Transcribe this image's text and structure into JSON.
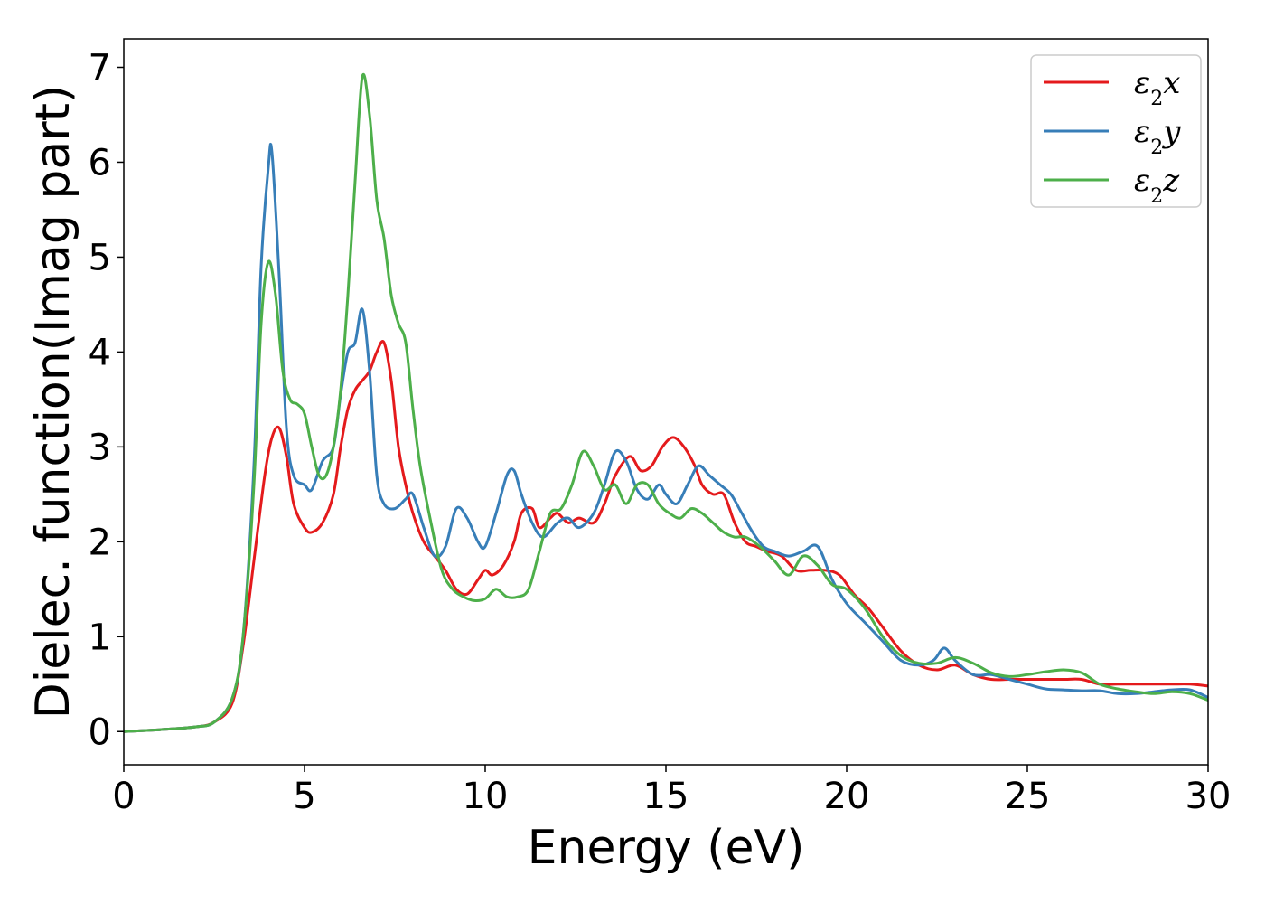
{
  "chart_data": {
    "type": "line",
    "title": "",
    "xlabel": "Energy (eV)",
    "ylabel": "Dielec. function(Imag part)",
    "xlim": [
      0,
      30
    ],
    "ylim": [
      -0.35,
      7.3
    ],
    "xticks": [
      "0",
      "5",
      "10",
      "15",
      "20",
      "25",
      "30"
    ],
    "yticks": [
      "0",
      "1",
      "2",
      "3",
      "4",
      "5",
      "6",
      "7"
    ],
    "grid": false,
    "legend_position": "top-right",
    "series": [
      {
        "name": "ε₂x",
        "legend": {
          "symbol": "ε",
          "sub": "2",
          "suffix": "x"
        },
        "color": "#e41a1c",
        "x": [
          0,
          1,
          2,
          2.5,
          3,
          3.3,
          3.6,
          3.9,
          4.1,
          4.3,
          4.5,
          4.7,
          5.0,
          5.2,
          5.5,
          5.8,
          6.0,
          6.2,
          6.4,
          6.6,
          6.8,
          7.0,
          7.2,
          7.4,
          7.6,
          7.8,
          8.0,
          8.3,
          8.6,
          8.9,
          9.2,
          9.5,
          9.8,
          10.0,
          10.2,
          10.5,
          10.8,
          11.0,
          11.3,
          11.5,
          11.8,
          12.0,
          12.3,
          12.6,
          13.0,
          13.3,
          13.6,
          14.0,
          14.3,
          14.6,
          14.9,
          15.2,
          15.5,
          15.8,
          16.0,
          16.3,
          16.6,
          16.9,
          17.2,
          17.5,
          17.8,
          18.2,
          18.6,
          19.0,
          19.4,
          19.8,
          20.2,
          20.6,
          21.0,
          21.5,
          22.0,
          22.5,
          23.0,
          23.5,
          24.0,
          24.5,
          25.0,
          25.5,
          26.0,
          26.5,
          27.0,
          27.5,
          28.0,
          28.5,
          29.0,
          29.5,
          30
        ],
        "y": [
          0,
          0.02,
          0.05,
          0.1,
          0.3,
          0.9,
          1.8,
          2.7,
          3.1,
          3.2,
          2.9,
          2.4,
          2.15,
          2.1,
          2.2,
          2.5,
          3.0,
          3.4,
          3.6,
          3.7,
          3.8,
          4.0,
          4.1,
          3.7,
          3.0,
          2.6,
          2.3,
          2.0,
          1.85,
          1.7,
          1.5,
          1.45,
          1.6,
          1.7,
          1.65,
          1.75,
          2.0,
          2.3,
          2.35,
          2.15,
          2.25,
          2.3,
          2.2,
          2.25,
          2.2,
          2.4,
          2.7,
          2.9,
          2.75,
          2.8,
          3.0,
          3.1,
          3.0,
          2.8,
          2.6,
          2.5,
          2.5,
          2.2,
          2.0,
          1.95,
          1.9,
          1.85,
          1.7,
          1.7,
          1.7,
          1.65,
          1.45,
          1.3,
          1.1,
          0.85,
          0.7,
          0.65,
          0.7,
          0.6,
          0.55,
          0.55,
          0.55,
          0.55,
          0.55,
          0.55,
          0.5,
          0.5,
          0.5,
          0.5,
          0.5,
          0.5,
          0.48
        ]
      },
      {
        "name": "ε₂y",
        "legend": {
          "symbol": "ε",
          "sub": "2",
          "suffix": "y"
        },
        "color": "#377eb8",
        "x": [
          0,
          1,
          2,
          2.5,
          3,
          3.3,
          3.6,
          3.8,
          4.0,
          4.1,
          4.3,
          4.5,
          4.7,
          5.0,
          5.2,
          5.5,
          5.8,
          6.0,
          6.2,
          6.4,
          6.6,
          6.8,
          7.0,
          7.2,
          7.5,
          7.8,
          8.0,
          8.3,
          8.6,
          8.9,
          9.2,
          9.5,
          9.8,
          10.0,
          10.3,
          10.6,
          10.8,
          11.0,
          11.3,
          11.6,
          12.0,
          12.3,
          12.6,
          13.0,
          13.3,
          13.6,
          13.9,
          14.2,
          14.5,
          14.8,
          15.0,
          15.3,
          15.6,
          15.9,
          16.2,
          16.5,
          16.8,
          17.1,
          17.4,
          17.7,
          18.0,
          18.4,
          18.8,
          19.2,
          19.6,
          20.0,
          20.5,
          21.0,
          21.5,
          22.0,
          22.4,
          22.7,
          23.0,
          23.5,
          24.0,
          24.5,
          25.0,
          25.5,
          26.0,
          26.5,
          27.0,
          27.5,
          28.0,
          28.5,
          29.0,
          29.5,
          30
        ],
        "y": [
          0,
          0.02,
          0.05,
          0.1,
          0.35,
          1.0,
          2.8,
          4.9,
          5.95,
          6.1,
          4.8,
          3.2,
          2.7,
          2.6,
          2.55,
          2.85,
          3.0,
          3.55,
          4.0,
          4.1,
          4.45,
          3.8,
          2.7,
          2.4,
          2.35,
          2.45,
          2.5,
          2.15,
          1.85,
          1.95,
          2.35,
          2.25,
          2.0,
          1.95,
          2.3,
          2.7,
          2.75,
          2.5,
          2.2,
          2.05,
          2.2,
          2.25,
          2.15,
          2.3,
          2.6,
          2.95,
          2.85,
          2.55,
          2.45,
          2.6,
          2.5,
          2.4,
          2.6,
          2.8,
          2.7,
          2.6,
          2.5,
          2.3,
          2.1,
          1.95,
          1.9,
          1.85,
          1.9,
          1.95,
          1.6,
          1.35,
          1.15,
          0.95,
          0.75,
          0.7,
          0.75,
          0.88,
          0.75,
          0.6,
          0.6,
          0.55,
          0.5,
          0.45,
          0.44,
          0.43,
          0.43,
          0.4,
          0.4,
          0.42,
          0.44,
          0.44,
          0.36
        ]
      },
      {
        "name": "ε₂z",
        "legend": {
          "symbol": "ε",
          "sub": "2",
          "suffix": "z"
        },
        "color": "#4daf4a",
        "x": [
          0,
          1,
          2,
          2.5,
          3,
          3.3,
          3.6,
          3.8,
          4.0,
          4.2,
          4.4,
          4.6,
          4.8,
          5.0,
          5.2,
          5.4,
          5.6,
          5.8,
          6.0,
          6.2,
          6.4,
          6.6,
          6.8,
          7.0,
          7.2,
          7.4,
          7.6,
          7.8,
          8.0,
          8.2,
          8.5,
          8.8,
          9.1,
          9.4,
          9.7,
          10.0,
          10.3,
          10.6,
          10.9,
          11.2,
          11.5,
          11.8,
          12.1,
          12.4,
          12.7,
          13.0,
          13.3,
          13.6,
          13.9,
          14.2,
          14.5,
          14.8,
          15.1,
          15.4,
          15.7,
          16.0,
          16.3,
          16.6,
          16.9,
          17.2,
          17.6,
          18.0,
          18.4,
          18.8,
          19.2,
          19.6,
          20.0,
          20.5,
          21.0,
          21.5,
          22.0,
          22.5,
          23.0,
          23.5,
          24.0,
          24.5,
          25.0,
          25.5,
          26.0,
          26.5,
          27.0,
          27.5,
          28.0,
          28.5,
          29.0,
          29.5,
          30
        ],
        "y": [
          0,
          0.02,
          0.05,
          0.1,
          0.35,
          1.0,
          2.6,
          4.3,
          4.95,
          4.6,
          3.8,
          3.5,
          3.45,
          3.35,
          3.0,
          2.7,
          2.7,
          3.0,
          3.6,
          4.6,
          5.8,
          6.9,
          6.5,
          5.6,
          5.2,
          4.6,
          4.3,
          4.1,
          3.4,
          2.8,
          2.2,
          1.7,
          1.5,
          1.42,
          1.38,
          1.4,
          1.5,
          1.42,
          1.42,
          1.5,
          1.9,
          2.3,
          2.35,
          2.6,
          2.95,
          2.8,
          2.55,
          2.6,
          2.4,
          2.6,
          2.6,
          2.4,
          2.3,
          2.25,
          2.35,
          2.3,
          2.2,
          2.1,
          2.05,
          2.05,
          1.95,
          1.8,
          1.65,
          1.85,
          1.75,
          1.55,
          1.5,
          1.3,
          1.0,
          0.8,
          0.72,
          0.72,
          0.78,
          0.72,
          0.62,
          0.58,
          0.6,
          0.63,
          0.65,
          0.62,
          0.5,
          0.45,
          0.42,
          0.4,
          0.42,
          0.4,
          0.33
        ]
      }
    ]
  }
}
